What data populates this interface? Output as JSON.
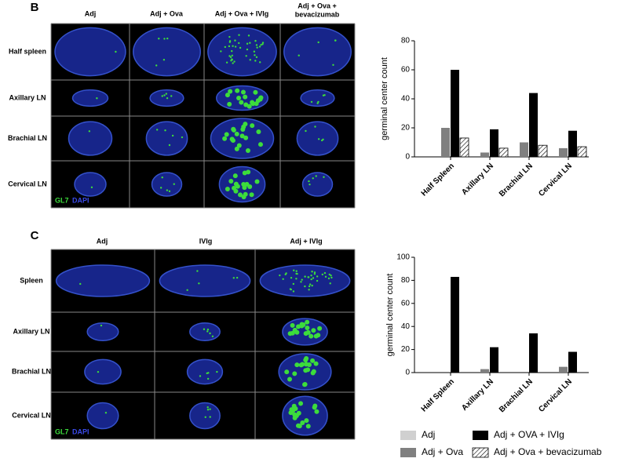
{
  "panels": [
    {
      "label": "B",
      "columns": [
        "Adj",
        "Adj + Ova",
        "Adj + Ova + IVIg",
        "Adj + Ova +",
        "bevacizumab"
      ],
      "rows": [
        "Half spleen",
        "Axillary LN",
        "Brachial LN",
        "Cervical LN"
      ],
      "stains": [
        "GL7",
        "DAPI"
      ]
    },
    {
      "label": "C",
      "columns": [
        "Adj",
        "IVIg",
        "Adj + IVIg"
      ],
      "rows": [
        "Spleen",
        "Axillary LN",
        "Brachial LN",
        "Cervical LN"
      ],
      "stains": [
        "GL7",
        "DAPI"
      ]
    }
  ],
  "chart_data": [
    {
      "type": "bar",
      "ylabel": "germinal center count",
      "categories": [
        "Half Spleen",
        "Axillary LN",
        "Brachial LN",
        "Cervical LN"
      ],
      "series": [
        {
          "name": "Adj",
          "color": "#d0d0d0",
          "values": [
            0,
            0,
            0,
            0
          ]
        },
        {
          "name": "Adj + Ova",
          "color": "#808080",
          "values": [
            20,
            3,
            10,
            6
          ]
        },
        {
          "name": "Adj + OVA + IVIg",
          "color": "#000000",
          "values": [
            60,
            19,
            44,
            18
          ]
        },
        {
          "name": "Adj + Ova + bevacizumab",
          "color": "hatch",
          "values": [
            13,
            6,
            8,
            7
          ]
        }
      ],
      "ylim": [
        0,
        80
      ],
      "yticks": [
        0,
        20,
        40,
        60,
        80
      ]
    },
    {
      "type": "bar",
      "ylabel": "germinal center count",
      "categories": [
        "Half Spleen",
        "Axillary LN",
        "Brachial LN",
        "Cervical LN"
      ],
      "series": [
        {
          "color": "#d0d0d0",
          "values": [
            0,
            0,
            0,
            0
          ]
        },
        {
          "color": "#808080",
          "values": [
            0,
            3,
            0,
            5
          ]
        },
        {
          "color": "#000000",
          "values": [
            83,
            22,
            34,
            18
          ]
        }
      ],
      "ylim": [
        0,
        100
      ],
      "yticks": [
        0,
        20,
        40,
        60,
        80,
        100
      ]
    }
  ]
}
